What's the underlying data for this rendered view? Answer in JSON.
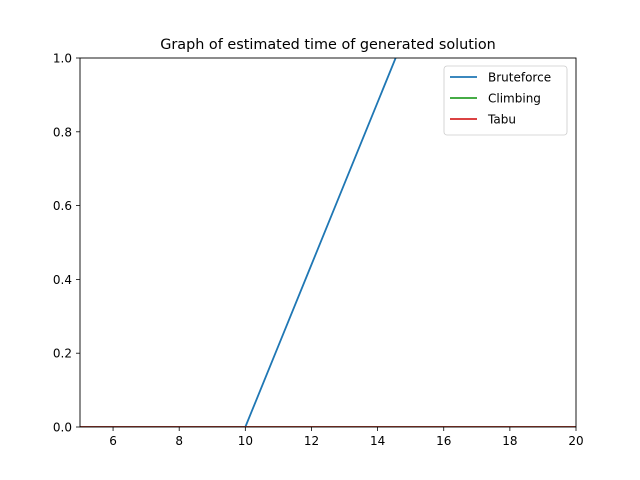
{
  "chart_data": {
    "type": "line",
    "title": "Graph of estimated time of generated solution",
    "xlabel": "",
    "ylabel": "",
    "xlim": [
      5,
      20
    ],
    "ylim": [
      0,
      1.0
    ],
    "x_ticks": [
      6,
      8,
      10,
      12,
      14,
      16,
      18,
      20
    ],
    "y_ticks": [
      0.0,
      0.2,
      0.4,
      0.6,
      0.8,
      1.0
    ],
    "x_tick_labels": [
      "6",
      "8",
      "10",
      "12",
      "14",
      "16",
      "18",
      "20"
    ],
    "y_tick_labels": [
      "0.0",
      "0.2",
      "0.4",
      "0.6",
      "0.8",
      "1.0"
    ],
    "grid": false,
    "legend_position": "top-right",
    "series": [
      {
        "name": "Bruteforce",
        "color": "#1f77b4",
        "x": [
          5,
          6,
          7,
          8,
          9,
          10,
          11,
          12,
          13,
          14,
          15
        ],
        "y": [
          0,
          0,
          0,
          0,
          0,
          0,
          0.22,
          0.44,
          0.66,
          0.88,
          1.1
        ]
      },
      {
        "name": "Climbing",
        "color": "#2ca02c",
        "x": [
          5,
          20
        ],
        "y": [
          0,
          0
        ]
      },
      {
        "name": "Tabu",
        "color": "#d62728",
        "x": [
          5,
          20
        ],
        "y": [
          0,
          0
        ]
      }
    ]
  }
}
